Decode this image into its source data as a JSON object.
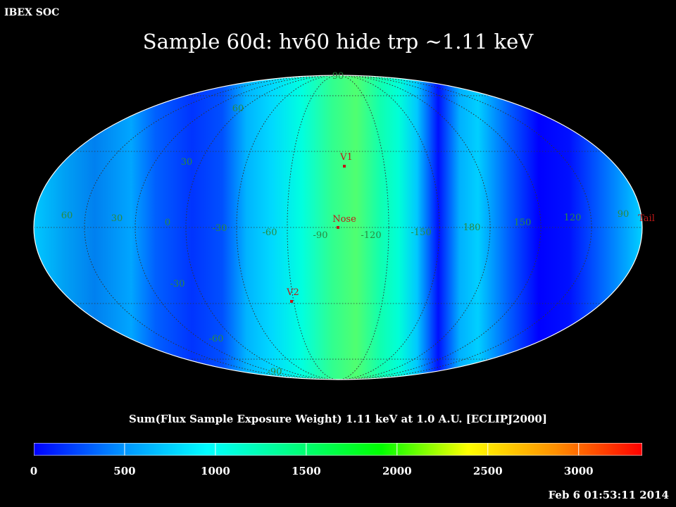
{
  "header": {
    "left_label": "IBEX SOC"
  },
  "title": "Sample 60d: hv60 hide trp ~1.11 keV",
  "map": {
    "lon_labels": [
      "60",
      "30",
      "0",
      "-30",
      "-60",
      "-90",
      "-120",
      "-150",
      "180",
      "150",
      "120",
      "90"
    ],
    "lat_labels": [
      "90",
      "60",
      "30",
      "-30",
      "-60",
      "-90"
    ],
    "markers": [
      {
        "label": "V1"
      },
      {
        "label": "Nose"
      },
      {
        "label": "V2"
      },
      {
        "label": "Tail"
      }
    ],
    "colors": {
      "grid": "#333333",
      "outline": "#ffffff",
      "marker": "#c01818"
    }
  },
  "colorbar": {
    "title": "Sum(Flux Sample Exposure Weight)  1.11 keV at 1.0 A.U. [ECLIPJ2000]",
    "ticks": [
      "0",
      "500",
      "1000",
      "1500",
      "2000",
      "2500",
      "3000"
    ],
    "range": [
      0,
      3350
    ],
    "stops": [
      "#0000ff",
      "#0090ff",
      "#00ffff",
      "#00ff80",
      "#00ff00",
      "#ffff00",
      "#ff9000",
      "#ff0000"
    ]
  },
  "timestamp": "Feb  6 01:53:11 2014"
}
